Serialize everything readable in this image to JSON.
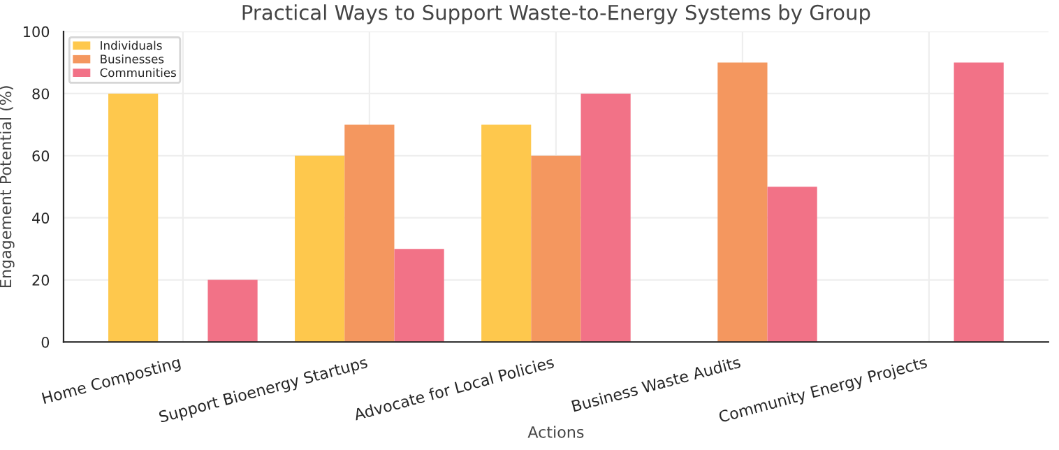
{
  "chart_data": {
    "type": "bar",
    "title": "Practical Ways to Support Waste-to-Energy Systems by Group",
    "xlabel": "Actions",
    "ylabel": "Engagement Potential (%)",
    "categories": [
      "Home Composting",
      "Support Bioenergy Startups",
      "Advocate for Local Policies",
      "Business Waste Audits",
      "Community Energy Projects"
    ],
    "series": [
      {
        "name": "Individuals",
        "color": "#fec84d",
        "values": [
          80,
          60,
          70,
          null,
          null
        ]
      },
      {
        "name": "Businesses",
        "color": "#f4975f",
        "values": [
          null,
          70,
          60,
          90,
          null
        ]
      },
      {
        "name": "Communities",
        "color": "#f27287",
        "values": [
          20,
          30,
          80,
          50,
          90
        ]
      }
    ],
    "ylim": [
      0,
      100
    ],
    "yticks": [
      0,
      20,
      40,
      60,
      80,
      100
    ],
    "grid": true,
    "legend": "top left"
  }
}
